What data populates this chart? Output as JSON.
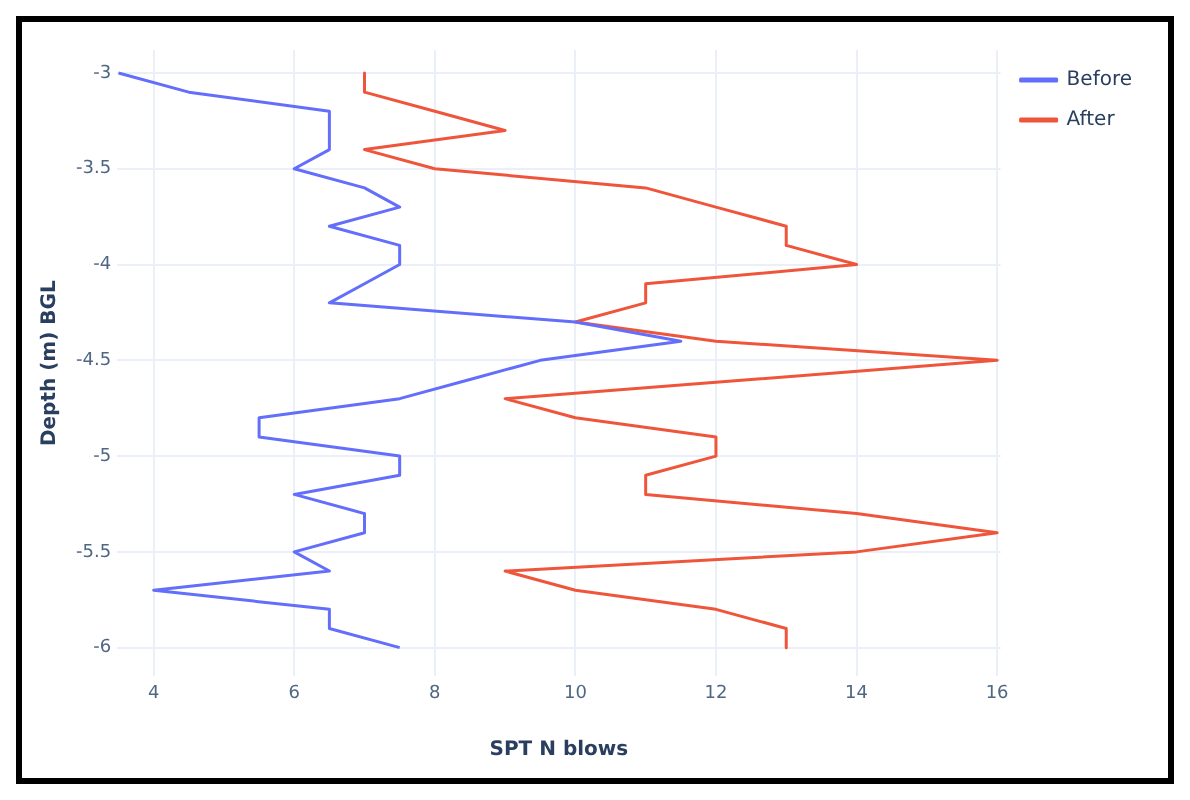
{
  "chart_data": {
    "type": "line",
    "xlabel": "SPT N blows",
    "ylabel": "Depth (m) BGL",
    "xlim": [
      3.48,
      16.05
    ],
    "ylim": [
      -6.15,
      -2.88
    ],
    "xticks": [
      4,
      6,
      8,
      10,
      12,
      14,
      16
    ],
    "yticks": [
      -3,
      -3.5,
      -4,
      -4.5,
      -5,
      -5.5,
      -6
    ],
    "grid": true,
    "legend": "top right",
    "marker": "none",
    "line_style": "solid",
    "series": [
      {
        "name": "Before",
        "color": "#636efa",
        "x": [
          3.5,
          4.5,
          6.5,
          6.5,
          6,
          7,
          7.5,
          6.5,
          7.5,
          7.5,
          7,
          6.5,
          10,
          11.5,
          9.5,
          8.5,
          7.5,
          5.5,
          5.5,
          7.5,
          7.5,
          6,
          7,
          7,
          6,
          6.5,
          4,
          6.5,
          6.5,
          7.5
        ],
        "values": [
          -3,
          -3.1,
          -3.2,
          -3.4,
          -3.5,
          -3.6,
          -3.7,
          -3.8,
          -3.9,
          -4,
          -4.1,
          -4.2,
          -4.3,
          -4.4,
          -4.5,
          -4.6,
          -4.7,
          -4.8,
          -4.9,
          -5,
          -5.1,
          -5.2,
          -5.3,
          -5.4,
          -5.5,
          -5.6,
          -5.7,
          -5.8,
          -5.9,
          -6
        ]
      },
      {
        "name": "After",
        "color": "#ef553b",
        "x": [
          7,
          7,
          8,
          9,
          7,
          8,
          11,
          12,
          13,
          13,
          14,
          11,
          11,
          10,
          12,
          16,
          12.5,
          9,
          10,
          12,
          12,
          11,
          11,
          14,
          16,
          14,
          9,
          10,
          12,
          13,
          13
        ],
        "values": [
          -3,
          -3.1,
          -3.2,
          -3.3,
          -3.4,
          -3.5,
          -3.6,
          -3.7,
          -3.8,
          -3.9,
          -4,
          -4.1,
          -4.2,
          -4.3,
          -4.4,
          -4.5,
          -4.6,
          -4.7,
          -4.8,
          -4.9,
          -5,
          -5.1,
          -5.2,
          -5.3,
          -5.4,
          -5.5,
          -5.6,
          -5.7,
          -5.8,
          -5.9,
          -6
        ]
      }
    ]
  }
}
